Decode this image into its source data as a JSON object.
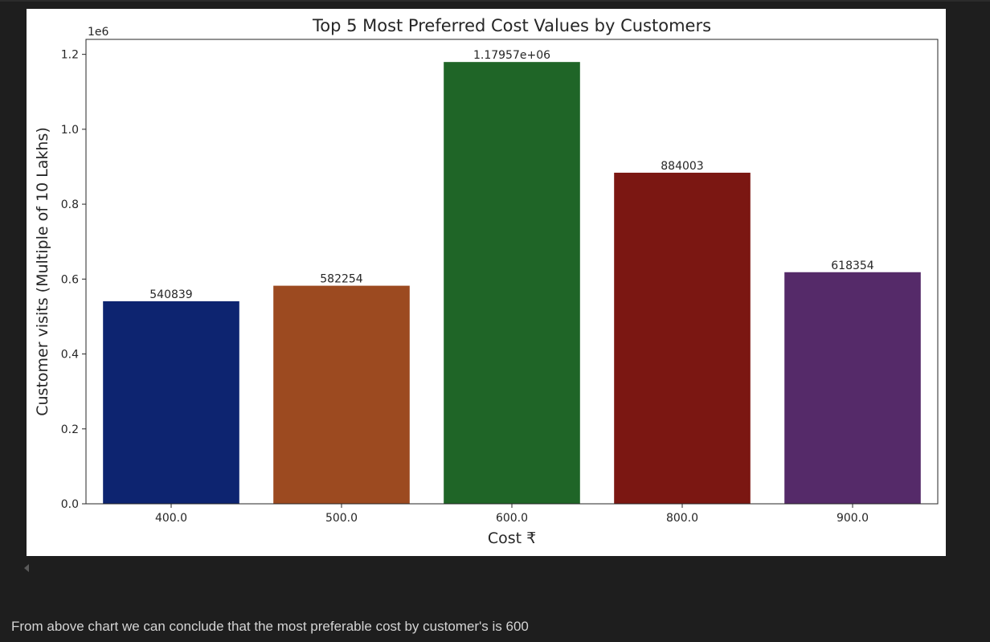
{
  "chart_data": {
    "type": "bar",
    "title": "Top 5 Most Preferred Cost Values by Customers",
    "xlabel": "Cost ₹",
    "ylabel": "Customer visits (Multiple of 10 Lakhs)",
    "axis_offset_label": "1e6",
    "categories": [
      "400.0",
      "500.0",
      "600.0",
      "800.0",
      "900.0"
    ],
    "values": [
      540839,
      582254,
      1179570,
      884003,
      618354
    ],
    "data_labels": [
      "540839",
      "582254",
      "1.17957e+06",
      "884003",
      "618354"
    ],
    "colors": [
      "#0d2470",
      "#9c4a20",
      "#1f6527",
      "#7b1712",
      "#552a69"
    ],
    "ylim": [
      0,
      1240000
    ],
    "yticks": [
      0,
      200000,
      400000,
      600000,
      800000,
      1000000,
      1200000
    ],
    "ytick_labels": [
      "0.0",
      "0.2",
      "0.4",
      "0.6",
      "0.8",
      "1.0",
      "1.2"
    ],
    "grid": false,
    "legend": "none"
  },
  "notebook": {
    "conclusion_text": "From above chart we can conclude that the most preferable cost by customer's is 600"
  }
}
